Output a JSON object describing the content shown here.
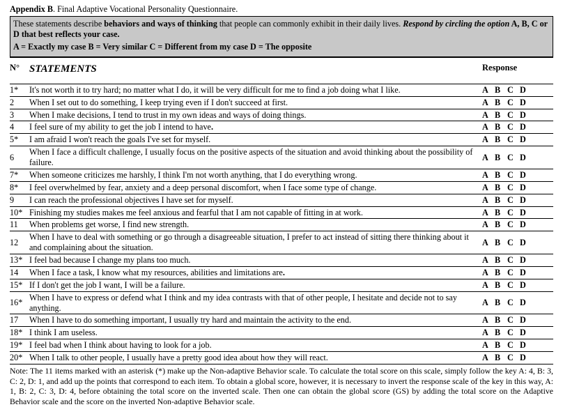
{
  "title_line": "<b>Appendix B</b>. Final Adaptive Vocational Personality Questionnaire.",
  "instructions": {
    "line1": "These statements describe <b>behaviors and ways of thinking</b> that people can commonly exhibit in their daily lives. <b><i>Respond by circling the option</i> A, B, C or D that best reflects your case.</b>",
    "line2": "A = Exactly my case B = Very similar C = Different from my case D = The opposite"
  },
  "headers": {
    "number": "N°",
    "statements": "STATEMENTS",
    "response": "Response"
  },
  "response_options": [
    "A",
    "B",
    "C",
    "D"
  ],
  "items": [
    {
      "n": "1*",
      "text": "It's not worth it to try hard; no matter what I do, it will be very difficult for me to find a job doing what I like."
    },
    {
      "n": "2",
      "text": "When I set out to do something, I keep trying even if I don't succeed at first."
    },
    {
      "n": "3",
      "text": "When I make decisions, I tend to trust in my own ideas and ways of doing things."
    },
    {
      "n": "4",
      "text": "I feel sure of my ability to get the job I intend to have<b>.</b>"
    },
    {
      "n": "5*",
      "text": "I am afraid I won't reach the goals I've set for myself."
    },
    {
      "n": "6",
      "text": "When I face a difficult challenge, I usually focus on the positive aspects of the situation and avoid thinking about the possibility of failure."
    },
    {
      "n": "7*",
      "text": "When someone criticizes me harshly, I think I'm not worth anything, that I do everything wrong."
    },
    {
      "n": "8*",
      "text": "I feel overwhelmed by fear, anxiety and a deep personal discomfort, when I face some type of change."
    },
    {
      "n": "9",
      "text": "I can reach the professional objectives I have set for myself."
    },
    {
      "n": "10*",
      "text": "Finishing my studies makes me feel anxious and fearful that I am not capable of fitting in at work."
    },
    {
      "n": "11",
      "text": "When problems get worse, I find new strength."
    },
    {
      "n": "12",
      "text": "When I have to deal with something or go through a disagreeable situation, I prefer to act instead of sitting there thinking about it and complaining about the situation."
    },
    {
      "n": "13*",
      "text": "I feel bad because I change my plans too much."
    },
    {
      "n": "14",
      "text": "When I face a task, I know what my resources, abilities and limitations are<b>.</b>"
    },
    {
      "n": "15*",
      "text": "If I don't get the job I want, I will be a failure."
    },
    {
      "n": "16*",
      "text": "When I have to express or defend what I think and my idea contrasts with that of other people, I hesitate and decide not to say anything."
    },
    {
      "n": "17",
      "text": "When I have to do something important, I usually try hard and maintain the activity to the end."
    },
    {
      "n": "18*",
      "text": "I think I am useless."
    },
    {
      "n": "19*",
      "text": "I feel bad when I think about having to look for a job."
    },
    {
      "n": "20*",
      "text": "When I talk to other people, I usually have a pretty good idea about how they will react."
    }
  ],
  "note": "Note: The 11 items marked with an asterisk (*) make up the Non-adaptive Behavior scale. To calculate the total score on this scale, simply follow the key A: 4, B: 3, C: 2, D: 1, and add up the points that correspond to each item. To obtain a global score, however, it is necessary to invert the response scale of the key in this way, A: 1, B: 2, C: 3, D: 4, before obtaining the total score on the inverted scale. Then one can obtain the global score (GS) by adding the total score on the Adaptive Behavior scale and the score on the inverted Non-adaptive Behavior scale."
}
